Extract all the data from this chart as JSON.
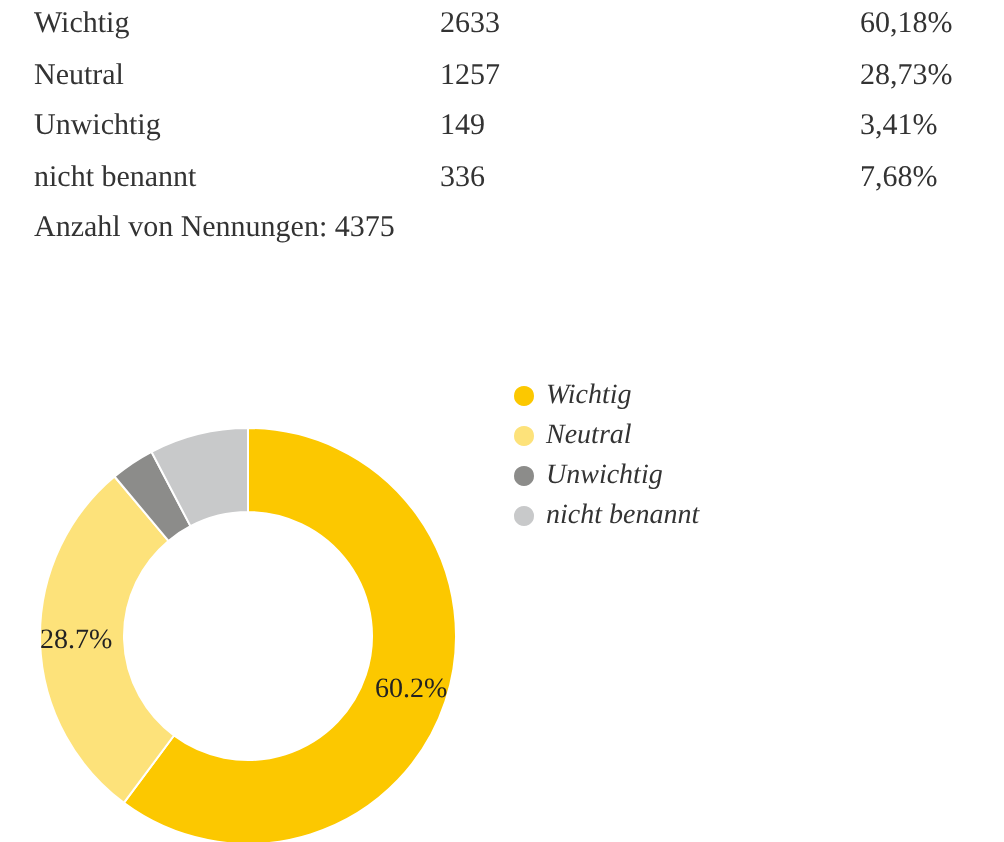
{
  "chart_data": {
    "type": "donut",
    "categories": [
      "Wichtig",
      "Neutral",
      "Unwichtig",
      "nicht benannt"
    ],
    "values": [
      60.18,
      28.73,
      3.41,
      7.68
    ],
    "colors": [
      "#fcc800",
      "#fde27a",
      "#8c8c8a",
      "#c8c9ca"
    ],
    "value_labels": [
      "60.2%",
      "28.7%",
      null,
      null
    ],
    "legend": "top right",
    "annotations": [
      "2633",
      "60,18%",
      "1257",
      "28,73%",
      "149",
      "3,41%",
      "336",
      "7,68%",
      "Anzahl von Nennungen: 4375"
    ]
  }
}
